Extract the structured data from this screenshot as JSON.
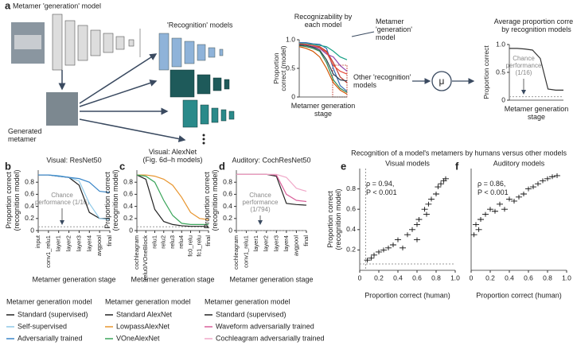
{
  "panel_labels": [
    "a",
    "b",
    "c",
    "d",
    "e",
    "f"
  ],
  "diagram": {
    "generation_model": "Metamer 'generation' model",
    "recognition_models": "'Recognition' models",
    "generated_metamer": [
      "Generated",
      "metamer"
    ],
    "callout_generation": [
      "Metamer",
      "'generation'",
      "model"
    ],
    "callout_other": [
      "Other 'recognition'",
      "models"
    ],
    "mu": "μ"
  },
  "header": "Recognition of a model's metamers by humans versus other models",
  "chart_data": [
    {
      "type": "line",
      "title": [
        "Recognizability by",
        "each model"
      ],
      "ylabel": [
        "Proportion",
        "correct (model)"
      ],
      "xlabel": [
        "Metamer generation",
        "stage"
      ],
      "ylim": [
        0,
        1
      ],
      "yticks": [
        0,
        0.5,
        {
          "value": 1,
          "label": "1.0"
        }
      ],
      "series": [
        {
          "color": "#3b6fb6",
          "values": [
            0.95,
            0.95,
            0.93,
            0.92,
            0.85,
            0.5,
            0.2,
            0.1
          ]
        },
        {
          "color": "#c0392b",
          "values": [
            0.93,
            0.92,
            0.9,
            0.88,
            0.8,
            0.6,
            0.35,
            0.25
          ]
        },
        {
          "color": "#2e8b57",
          "values": [
            0.9,
            0.88,
            0.85,
            0.8,
            0.6,
            0.3,
            0.15,
            0.08
          ]
        },
        {
          "color": "#8e44ad",
          "values": [
            0.92,
            0.9,
            0.88,
            0.85,
            0.75,
            0.7,
            0.55,
            0.45
          ]
        },
        {
          "color": "#d35400",
          "values": [
            0.88,
            0.85,
            0.8,
            0.7,
            0.5,
            0.25,
            0.12,
            0.05
          ]
        },
        {
          "color": "#16a085",
          "values": [
            0.94,
            0.93,
            0.92,
            0.9,
            0.88,
            0.8,
            0.7,
            0.65
          ]
        },
        {
          "color": "#2c3e50",
          "values": [
            0.91,
            0.9,
            0.87,
            0.82,
            0.65,
            0.4,
            0.3,
            0.28
          ]
        },
        {
          "color": "#e74c3c",
          "values": [
            0.93,
            0.92,
            0.9,
            0.86,
            0.78,
            0.55,
            0.45,
            0.4
          ]
        }
      ]
    },
    {
      "type": "line",
      "title": [
        "Average proportion correct",
        "by recognition models"
      ],
      "ylabel": [
        "Proportion correct"
      ],
      "xlabel": [
        "Metamer generation",
        "stage"
      ],
      "ylim": [
        0,
        1
      ],
      "yticks": [
        0,
        0.5,
        {
          "value": 1,
          "label": "1.0"
        }
      ],
      "chance_level": 0.0625,
      "annotation": [
        "Chance",
        "performance",
        "(1/16)"
      ],
      "series": [
        {
          "color": "#333333",
          "values": [
            0.93,
            0.93,
            0.92,
            0.9,
            0.75,
            0.2,
            0.18,
            0.18
          ]
        }
      ]
    },
    {
      "type": "line",
      "title": "Visual: ResNet50",
      "ylabel": [
        "Proportion correct",
        "(recognition model)"
      ],
      "xlabel": "Metamer generation stage",
      "legend_title": "Metamer generation model",
      "categories": [
        "input",
        "conv1_relu1",
        "layer1",
        "layer2",
        "layer3",
        "layer4",
        "avgpool",
        "final"
      ],
      "ylim": [
        0,
        1
      ],
      "yticks": [
        0,
        0.2,
        0.4,
        0.6,
        0.8
      ],
      "chance_level": 0.0625,
      "annotation": [
        "Chance",
        "performance (1/16)"
      ],
      "series": [
        {
          "name": "Standard (supervised)",
          "color": "#222222",
          "values": [
            0.92,
            0.92,
            0.9,
            0.88,
            0.75,
            0.3,
            0.2,
            0.2
          ]
        },
        {
          "name": "Self-supervised",
          "color": "#8ec9e8",
          "values": [
            0.92,
            0.92,
            0.91,
            0.88,
            0.82,
            0.45,
            0.2,
            0.18
          ]
        },
        {
          "name": "Adversarially trained",
          "color": "#3a86c8",
          "values": [
            0.92,
            0.92,
            0.9,
            0.88,
            0.86,
            0.8,
            0.65,
            0.63
          ]
        }
      ]
    },
    {
      "type": "line",
      "title": [
        "Visual: AlexNet",
        "(Fig. 6d–h models)"
      ],
      "ylabel": [
        "Proportion correct",
        "(recognition model)"
      ],
      "xlabel": "Metamer generation stage",
      "legend_title": "Metamer generation model",
      "categories": [
        "cochleagram",
        "relu0/VOneBlock",
        "relu1",
        "relu2",
        "relu3",
        "relu4",
        "fc0_relu",
        "fc1_relu",
        "final"
      ],
      "ylim": [
        0,
        1
      ],
      "yticks": [
        0,
        0.2,
        0.4,
        0.6,
        0.8
      ],
      "chance_level": 0.0625,
      "series": [
        {
          "name": "Standard AlexNet",
          "color": "#222222",
          "values": [
            0.92,
            0.85,
            0.35,
            0.15,
            0.1,
            0.08,
            0.07,
            0.07,
            0.07
          ]
        },
        {
          "name": "LowpassAlexNet",
          "color": "#e8952e",
          "values": [
            0.92,
            0.92,
            0.9,
            0.85,
            0.75,
            0.55,
            0.3,
            0.2,
            0.18
          ]
        },
        {
          "name": "VOneAlexNet",
          "color": "#3aa55a",
          "values": [
            0.92,
            0.9,
            0.8,
            0.5,
            0.25,
            0.12,
            0.1,
            0.1,
            0.1
          ]
        }
      ]
    },
    {
      "type": "line",
      "title": "Auditory: CochResNet50",
      "ylabel": [
        "Proportion correct",
        "(recognition model)"
      ],
      "xlabel": "Metamer generation stage",
      "legend_title": "Metamer generation model",
      "categories": [
        "cochleagram",
        "conv1_relu1",
        "layer1",
        "layer2",
        "layer3",
        "layer4",
        "avgpool",
        "final"
      ],
      "ylim": [
        0,
        1
      ],
      "yticks": [
        0,
        0.2,
        0.4,
        0.6,
        0.8
      ],
      "chance_level": 0.00126,
      "annotation": [
        "Chance",
        "performance",
        "(1/794)"
      ],
      "series": [
        {
          "name": "Standard (supervised)",
          "color": "#222222",
          "values": [
            0.93,
            0.93,
            0.93,
            0.93,
            0.9,
            0.45,
            0.43,
            0.42
          ]
        },
        {
          "name": "Waveform adversarially trained",
          "color": "#d9609a",
          "values": [
            0.93,
            0.93,
            0.93,
            0.93,
            0.92,
            0.6,
            0.5,
            0.48
          ]
        },
        {
          "name": "Cochleagram adversarially trained",
          "color": "#f0a8c8",
          "values": [
            0.93,
            0.93,
            0.93,
            0.93,
            0.93,
            0.88,
            0.7,
            0.65
          ]
        }
      ]
    },
    {
      "type": "scatter",
      "title": "Visual models",
      "ylabel": [
        "Proportion correct",
        "(recognition model)"
      ],
      "xlabel": "Proportion correct (human)",
      "annotation": [
        "ρ = 0.94,",
        "P < 0.001"
      ],
      "xlim": [
        0,
        1
      ],
      "xticks": [
        0,
        0.2,
        0.4,
        0.6,
        0.8,
        {
          "value": 1,
          "label": "1.0"
        }
      ],
      "ylim": [
        0,
        1
      ],
      "yticks": [
        0.2,
        0.4,
        0.6,
        0.8
      ],
      "chance_level": 0.0625,
      "color": "#111111",
      "x": [
        0.08,
        0.12,
        0.15,
        0.2,
        0.25,
        0.3,
        0.35,
        0.4,
        0.45,
        0.5,
        0.55,
        0.6,
        0.62,
        0.68,
        0.72,
        0.75,
        0.8,
        0.82,
        0.85,
        0.88,
        0.9,
        0.6,
        0.7
      ],
      "y": [
        0.1,
        0.12,
        0.15,
        0.18,
        0.2,
        0.22,
        0.25,
        0.3,
        0.22,
        0.35,
        0.4,
        0.45,
        0.5,
        0.6,
        0.65,
        0.7,
        0.75,
        0.82,
        0.85,
        0.88,
        0.9,
        0.3,
        0.55
      ]
    },
    {
      "type": "scatter",
      "title": "Auditory models",
      "xlabel": "Proportion correct (human)",
      "annotation": [
        "ρ = 0.86,",
        "P < 0.001"
      ],
      "xlim": [
        0,
        1
      ],
      "xticks": [
        0,
        0.2,
        0.4,
        0.6,
        0.8,
        {
          "value": 1,
          "label": "1.0"
        }
      ],
      "ylim": [
        0,
        1
      ],
      "yticks": [],
      "color": "#111111",
      "x": [
        0.03,
        0.05,
        0.08,
        0.1,
        0.15,
        0.2,
        0.25,
        0.3,
        0.35,
        0.4,
        0.45,
        0.5,
        0.55,
        0.6,
        0.65,
        0.7,
        0.75,
        0.8,
        0.85,
        0.9
      ],
      "y": [
        0.35,
        0.45,
        0.4,
        0.5,
        0.55,
        0.6,
        0.58,
        0.65,
        0.6,
        0.7,
        0.68,
        0.72,
        0.75,
        0.8,
        0.82,
        0.85,
        0.88,
        0.9,
        0.92,
        0.93
      ]
    }
  ]
}
